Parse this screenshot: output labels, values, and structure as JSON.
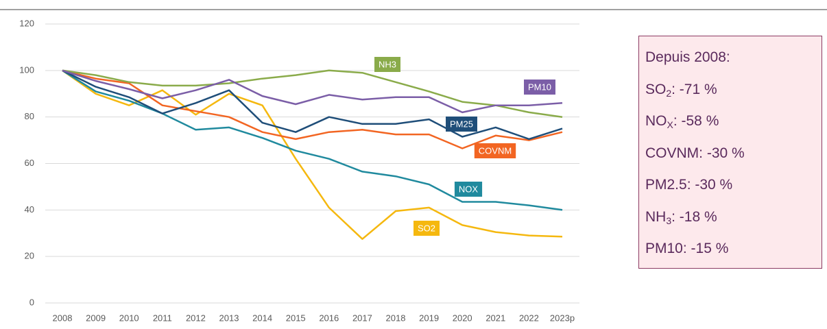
{
  "chart_data": {
    "type": "line",
    "categories": [
      "2008",
      "2009",
      "2010",
      "2011",
      "2012",
      "2013",
      "2014",
      "2015",
      "2016",
      "2017",
      "2018",
      "2019",
      "2020",
      "2021",
      "2022",
      "2023p"
    ],
    "ylim": [
      0,
      120
    ],
    "yticks": [
      0,
      20,
      40,
      60,
      80,
      100,
      120
    ],
    "grid": true,
    "series": [
      {
        "name": "SO2",
        "color": "#f5b80f",
        "values": [
          100,
          90,
          85,
          91.5,
          81,
          90,
          85,
          62,
          41,
          27.5,
          39.5,
          41,
          33.5,
          30.5,
          29,
          28.5
        ]
      },
      {
        "name": "NOX",
        "color": "#208a9e",
        "values": [
          100,
          91,
          87,
          81.5,
          74.5,
          75.5,
          71,
          65.5,
          62,
          56.5,
          54.5,
          51,
          43.5,
          43.5,
          42,
          40
        ]
      },
      {
        "name": "COVNM",
        "color": "#f26522",
        "values": [
          100,
          96.5,
          94.5,
          85,
          82.5,
          80,
          73.5,
          70.5,
          73.5,
          74.5,
          72.5,
          72.5,
          66.5,
          72,
          70,
          73.5
        ]
      },
      {
        "name": "PM25",
        "color": "#1f4e79",
        "values": [
          100,
          93,
          88.5,
          81.5,
          86,
          91.5,
          77.5,
          73.5,
          80,
          77,
          77,
          79,
          71.5,
          75.5,
          70.5,
          75
        ]
      },
      {
        "name": "NH3",
        "color": "#8aab4a",
        "values": [
          100,
          98,
          95,
          93.5,
          93.5,
          94.5,
          96.5,
          98,
          100,
          99,
          95,
          91,
          86.5,
          85,
          82,
          80
        ]
      },
      {
        "name": "PM10",
        "color": "#7b5ea7",
        "values": [
          100,
          95.5,
          92,
          88,
          91.5,
          96,
          89,
          85.5,
          89.5,
          87.5,
          88.5,
          88.5,
          82,
          85,
          85,
          86
        ]
      }
    ]
  },
  "summary_box": {
    "title": "Depuis 2008:",
    "items": [
      {
        "text": "SO",
        "sub": "2",
        "rest": ": -71 %"
      },
      {
        "text": "NO",
        "sub": "X",
        "rest": ": -58 %"
      },
      {
        "text": "COVNM: -30 %"
      },
      {
        "text": "PM2.5: -30 %"
      },
      {
        "text": "NH",
        "sub": "3",
        "rest": ": -18 %"
      },
      {
        "text": "PM10: -15 %"
      }
    ]
  }
}
